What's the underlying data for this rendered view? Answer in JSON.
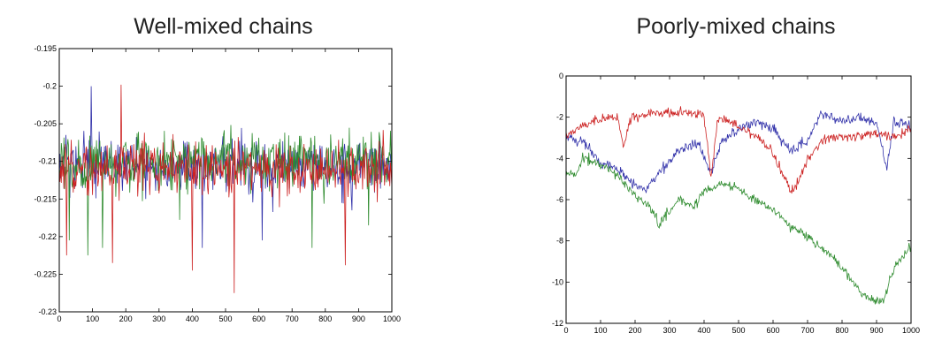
{
  "chart_data": [
    {
      "type": "line",
      "title": "Well-mixed chains",
      "xlim": [
        0,
        1000
      ],
      "ylim": [
        -0.23,
        -0.195
      ],
      "xticks": [
        0,
        100,
        200,
        300,
        400,
        500,
        600,
        700,
        800,
        900,
        1000
      ],
      "xtick_labels": [
        "0",
        "100",
        "200",
        "300",
        "400",
        "500",
        "600",
        "700",
        "800",
        "900",
        "1000"
      ],
      "yticks": [
        -0.195,
        -0.2,
        -0.205,
        -0.21,
        -0.215,
        -0.22,
        -0.225,
        -0.23
      ],
      "ytick_labels": [
        "-0.195",
        "-0.2",
        "-0.205",
        "-0.21",
        "-0.215",
        "-0.22",
        "-0.225",
        "-0.23"
      ],
      "grid": false,
      "series": [
        {
          "color": "#3333aa",
          "center": -0.2105,
          "spread": 0.0018,
          "spikes": [
            [
              95,
              -0.2
            ],
            [
              260,
              -0.215
            ],
            [
              430,
              -0.2215
            ],
            [
              610,
              -0.2205
            ],
            [
              880,
              -0.2165
            ]
          ]
        },
        {
          "color": "#2e8b2e",
          "center": -0.21,
          "spread": 0.0019,
          "spikes": [
            [
              30,
              -0.2205
            ],
            [
              85,
              -0.2225
            ],
            [
              130,
              -0.2215
            ],
            [
              760,
              -0.2215
            ],
            [
              845,
              -0.2085
            ],
            [
              930,
              -0.2185
            ]
          ]
        },
        {
          "color": "#cc2222",
          "center": -0.211,
          "spread": 0.0018,
          "spikes": [
            [
              22,
              -0.2225
            ],
            [
              160,
              -0.2235
            ],
            [
              185,
              -0.1998
            ],
            [
              400,
              -0.2245
            ],
            [
              525,
              -0.2275
            ],
            [
              860,
              -0.2238
            ]
          ]
        }
      ]
    },
    {
      "type": "line",
      "title": "Poorly-mixed chains",
      "xlim": [
        0,
        1000
      ],
      "ylim": [
        -12,
        0
      ],
      "xticks": [
        0,
        100,
        200,
        300,
        400,
        500,
        600,
        700,
        800,
        900,
        1000
      ],
      "xtick_labels": [
        "0",
        "100",
        "200",
        "300",
        "400",
        "500",
        "600",
        "700",
        "800",
        "900",
        "1000"
      ],
      "yticks": [
        0,
        -2,
        -4,
        -6,
        -8,
        -10,
        -12
      ],
      "ytick_labels": [
        "0",
        "-2",
        "-4",
        "-6",
        "-8",
        "-10",
        "-12"
      ],
      "grid": false,
      "series": [
        {
          "color": "#3333aa",
          "points": [
            [
              0,
              -3.0
            ],
            [
              50,
              -3.2
            ],
            [
              100,
              -4.2
            ],
            [
              150,
              -4.5
            ],
            [
              200,
              -5.3
            ],
            [
              230,
              -5.5
            ],
            [
              280,
              -4.5
            ],
            [
              330,
              -3.6
            ],
            [
              380,
              -3.2
            ],
            [
              420,
              -4.7
            ],
            [
              450,
              -3.2
            ],
            [
              500,
              -2.6
            ],
            [
              550,
              -2.2
            ],
            [
              600,
              -2.6
            ],
            [
              650,
              -3.6
            ],
            [
              700,
              -3.2
            ],
            [
              740,
              -1.8
            ],
            [
              800,
              -2.2
            ],
            [
              850,
              -2.0
            ],
            [
              900,
              -2.3
            ],
            [
              930,
              -4.5
            ],
            [
              950,
              -2.2
            ],
            [
              1000,
              -2.5
            ]
          ]
        },
        {
          "color": "#2e8b2e",
          "points": [
            [
              0,
              -4.8
            ],
            [
              30,
              -4.7
            ],
            [
              50,
              -4.0
            ],
            [
              100,
              -4.3
            ],
            [
              150,
              -4.8
            ],
            [
              200,
              -5.8
            ],
            [
              250,
              -6.5
            ],
            [
              270,
              -7.3
            ],
            [
              300,
              -6.5
            ],
            [
              330,
              -6.0
            ],
            [
              370,
              -6.4
            ],
            [
              400,
              -5.6
            ],
            [
              450,
              -5.2
            ],
            [
              500,
              -5.5
            ],
            [
              550,
              -6.0
            ],
            [
              600,
              -6.5
            ],
            [
              650,
              -7.3
            ],
            [
              700,
              -7.8
            ],
            [
              750,
              -8.5
            ],
            [
              800,
              -9.3
            ],
            [
              850,
              -10.5
            ],
            [
              880,
              -10.8
            ],
            [
              920,
              -10.9
            ],
            [
              950,
              -9.3
            ],
            [
              1000,
              -8.2
            ]
          ]
        },
        {
          "color": "#cc2222",
          "points": [
            [
              0,
              -2.8
            ],
            [
              50,
              -2.5
            ],
            [
              100,
              -2.1
            ],
            [
              150,
              -2.0
            ],
            [
              165,
              -3.4
            ],
            [
              190,
              -2.0
            ],
            [
              250,
              -1.8
            ],
            [
              300,
              -1.75
            ],
            [
              350,
              -1.8
            ],
            [
              400,
              -1.85
            ],
            [
              420,
              -4.9
            ],
            [
              440,
              -2.0
            ],
            [
              480,
              -2.2
            ],
            [
              520,
              -2.6
            ],
            [
              560,
              -3.0
            ],
            [
              600,
              -3.8
            ],
            [
              650,
              -5.5
            ],
            [
              670,
              -5.3
            ],
            [
              700,
              -4.0
            ],
            [
              730,
              -3.4
            ],
            [
              760,
              -3.0
            ],
            [
              800,
              -3.0
            ],
            [
              850,
              -2.9
            ],
            [
              900,
              -2.8
            ],
            [
              950,
              -3.0
            ],
            [
              1000,
              -2.5
            ]
          ]
        }
      ]
    }
  ]
}
